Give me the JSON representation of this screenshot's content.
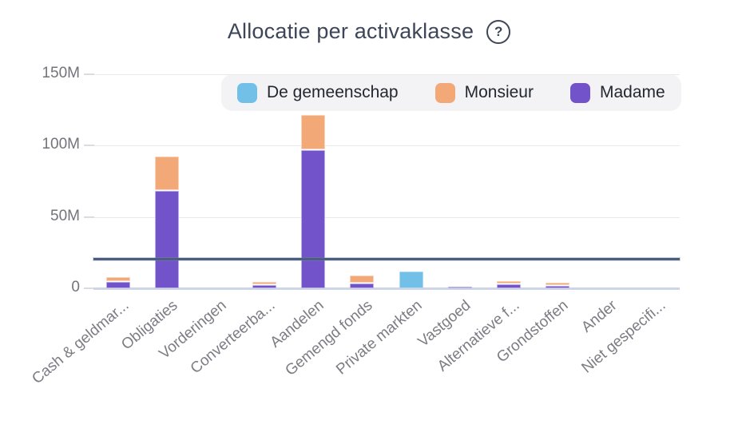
{
  "header": {
    "title": "Allocatie per activaklasse",
    "help_icon": "?"
  },
  "legend": {
    "items": [
      {
        "label": "De gemeenschap",
        "color": "#72bfe8"
      },
      {
        "label": "Monsieur",
        "color": "#f3a878"
      },
      {
        "label": "Madame",
        "color": "#7253c9"
      }
    ]
  },
  "chart_data": {
    "type": "bar",
    "stacked": true,
    "title": "Allocatie per activaklasse",
    "unit": "M",
    "categories": [
      "Cash & geldmar...",
      "Obligaties",
      "Vorderingen",
      "Converteerba...",
      "Aandelen",
      "Gemengd fonds",
      "Private markten",
      "Vastgoed",
      "Alternatieve f...",
      "Grondstoffen",
      "Ander",
      "Niet gespecifi..."
    ],
    "series": [
      {
        "name": "De gemeenschap",
        "color": "#72bfe8",
        "border_color": "#aedaf2",
        "values": [
          0,
          0,
          0,
          0,
          0,
          0,
          11.5,
          0,
          0,
          0,
          0,
          0
        ]
      },
      {
        "name": "Monsieur",
        "color": "#f3a878",
        "border_color": "#f8d4b9",
        "values": [
          3,
          23.5,
          0,
          1.4,
          24,
          5,
          0,
          0,
          1.4,
          1.4,
          0,
          0
        ]
      },
      {
        "name": "Madame",
        "color": "#7253c9",
        "border_color": "#b9aee8",
        "values": [
          4.5,
          68.5,
          0,
          2.3,
          97,
          3.4,
          0,
          0.8,
          2.6,
          1.8,
          0,
          0
        ]
      }
    ],
    "stack_order_bottom_to_top": [
      "Madame",
      "Monsieur",
      "De gemeenschap"
    ],
    "y_ticks": [
      {
        "value": 0,
        "label": "0"
      },
      {
        "value": 50,
        "label": "50M"
      },
      {
        "value": 100,
        "label": "100M"
      },
      {
        "value": 150,
        "label": "150M"
      }
    ],
    "ylim": [
      0,
      160
    ],
    "grid": "horizontal",
    "legend_position": "top",
    "benchmark_line": {
      "value": 21,
      "color": "#4d5d7c"
    },
    "colors": {
      "grid": "#e9e9ec",
      "axis_baseline": "#cfd5e8",
      "axis_labels": "#7c7c84",
      "title": "#3d4658"
    }
  }
}
